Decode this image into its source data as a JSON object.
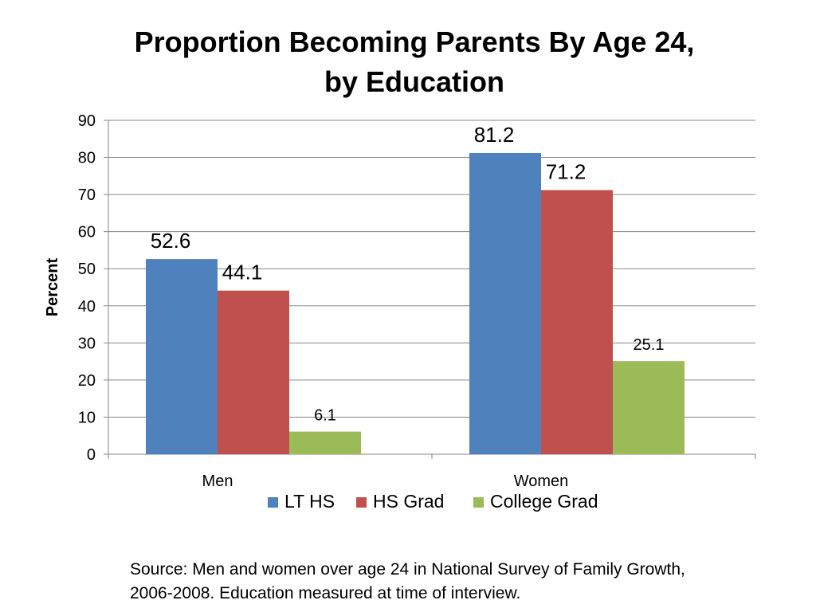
{
  "chart_data": {
    "type": "bar",
    "title_lines": [
      "Proportion Becoming Parents By Age 24,",
      "by Education"
    ],
    "ylabel": "Percent",
    "xlabel": "",
    "ylim": [
      0,
      90
    ],
    "yticks": [
      0,
      10,
      20,
      30,
      40,
      50,
      60,
      70,
      80,
      90
    ],
    "categories": [
      "Men",
      "Women"
    ],
    "series": [
      {
        "name": "LT HS",
        "color": "#4F81BD",
        "values": [
          52.6,
          81.2
        ]
      },
      {
        "name": "HS Grad",
        "color": "#C0504D",
        "values": [
          44.1,
          71.2
        ]
      },
      {
        "name": "College Grad",
        "color": "#9BBB59",
        "values": [
          6.1,
          25.1
        ]
      }
    ],
    "data_labels": [
      [
        "52.6",
        "81.2"
      ],
      [
        "44.1",
        "71.2"
      ],
      [
        "6.1",
        "25.1"
      ]
    ],
    "grid": true,
    "legend_position": "bottom"
  },
  "source_lines": [
    "Source: Men and women over age 24 in National Survey of Family Growth,",
    "2006-2008.  Education measured at time of interview."
  ]
}
